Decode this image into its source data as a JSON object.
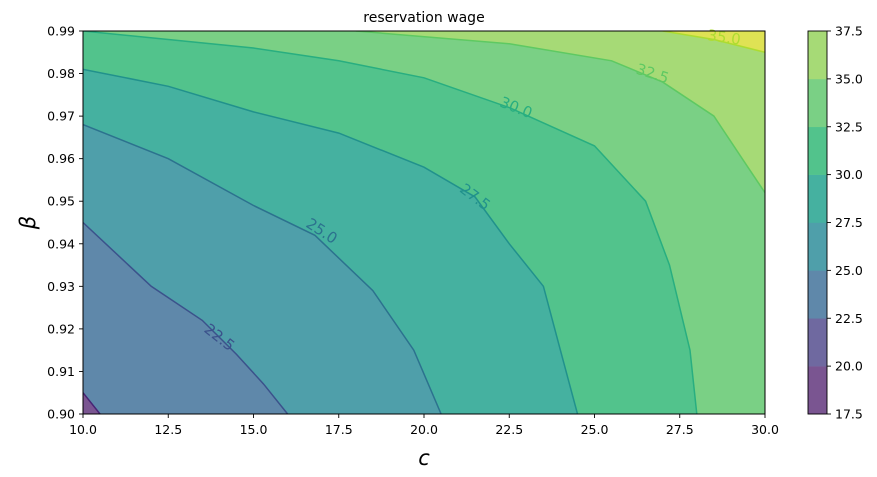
{
  "chart_data": {
    "type": "contour",
    "title": "reservation wage",
    "xlabel": "c",
    "ylabel": "β",
    "xlim": [
      10.0,
      30.0
    ],
    "ylim": [
      0.9,
      0.99
    ],
    "xticks": [
      "10.0",
      "12.5",
      "15.0",
      "17.5",
      "20.0",
      "22.5",
      "25.0",
      "27.5",
      "30.0"
    ],
    "yticks": [
      "0.90",
      "0.91",
      "0.92",
      "0.93",
      "0.94",
      "0.95",
      "0.96",
      "0.97",
      "0.98",
      "0.99"
    ],
    "colorbar": {
      "levels": [
        17.5,
        20.0,
        22.5,
        25.0,
        27.5,
        30.0,
        32.5,
        35.0,
        37.5
      ],
      "tick_labels": [
        "17.5",
        "20.0",
        "22.5",
        "25.0",
        "27.5",
        "30.0",
        "32.5",
        "35.0",
        "37.5"
      ],
      "colors": [
        "#7a5591",
        "#6f69a0",
        "#5f88aa",
        "#4f9faa",
        "#45b1a0",
        "#52c38c",
        "#7ad085",
        "#a6da76",
        "#dfe254"
      ]
    },
    "contour_lines": [
      {
        "level": 20.0,
        "label": "",
        "color": "#482475",
        "points": [
          [
            10.0,
            0.905
          ],
          [
            10.5,
            0.9
          ]
        ]
      },
      {
        "level": 22.5,
        "label": "22.5",
        "color": "#3b528b",
        "points": [
          [
            10.0,
            0.945
          ],
          [
            12.0,
            0.93
          ],
          [
            13.5,
            0.922
          ],
          [
            14.5,
            0.914
          ],
          [
            15.3,
            0.907
          ],
          [
            16.0,
            0.9
          ]
        ]
      },
      {
        "level": 25.0,
        "label": "25.0",
        "color": "#2c728e",
        "points": [
          [
            10.0,
            0.968
          ],
          [
            12.5,
            0.96
          ],
          [
            15.0,
            0.949
          ],
          [
            16.8,
            0.942
          ],
          [
            18.5,
            0.929
          ],
          [
            19.7,
            0.915
          ],
          [
            20.5,
            0.9
          ]
        ]
      },
      {
        "level": 27.5,
        "label": "27.5",
        "color": "#21918c",
        "points": [
          [
            10.0,
            0.981
          ],
          [
            12.5,
            0.977
          ],
          [
            15.0,
            0.971
          ],
          [
            17.5,
            0.966
          ],
          [
            20.0,
            0.958
          ],
          [
            21.5,
            0.951
          ],
          [
            22.5,
            0.94
          ],
          [
            23.5,
            0.93
          ],
          [
            24.0,
            0.915
          ],
          [
            24.5,
            0.9
          ]
        ]
      },
      {
        "level": 30.0,
        "label": "30.0",
        "color": "#28ae80",
        "points": [
          [
            10.0,
            0.99
          ],
          [
            12.5,
            0.988
          ],
          [
            15.0,
            0.986
          ],
          [
            17.5,
            0.983
          ],
          [
            20.0,
            0.979
          ],
          [
            22.5,
            0.972
          ],
          [
            25.0,
            0.963
          ],
          [
            26.5,
            0.95
          ],
          [
            27.2,
            0.935
          ],
          [
            27.8,
            0.915
          ],
          [
            28.0,
            0.9
          ]
        ]
      },
      {
        "level": 32.5,
        "label": "32.5",
        "color": "#5ec962",
        "points": [
          [
            18.0,
            0.99
          ],
          [
            22.5,
            0.987
          ],
          [
            25.5,
            0.983
          ],
          [
            27.0,
            0.978
          ],
          [
            28.5,
            0.97
          ],
          [
            29.5,
            0.958
          ],
          [
            30.0,
            0.952
          ]
        ]
      },
      {
        "level": 35.0,
        "label": "35.0",
        "color": "#addc30",
        "points": [
          [
            27.0,
            0.99
          ],
          [
            28.5,
            0.988
          ],
          [
            30.0,
            0.985
          ]
        ]
      }
    ]
  }
}
